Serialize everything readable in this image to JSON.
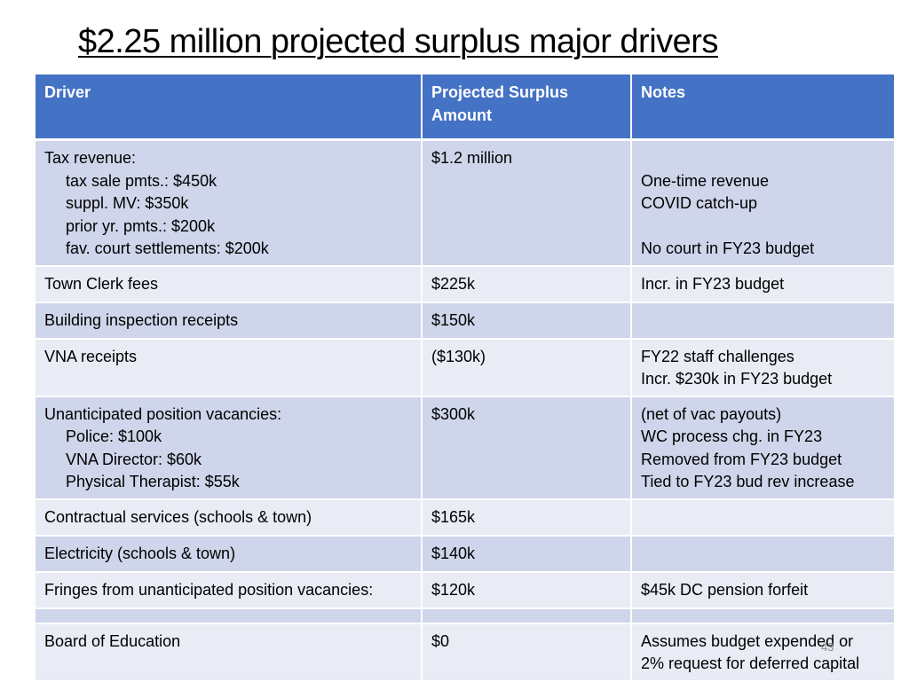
{
  "title": "$2.25 million projected surplus major drivers",
  "table": {
    "headers": [
      "Driver",
      "Projected Surplus Amount",
      "Notes"
    ],
    "header_lines": {
      "amount": [
        "Projected Surplus",
        "Amount"
      ]
    },
    "rows": [
      {
        "driver": "Tax revenue:",
        "driver_subitems": [
          "tax sale pmts.: $450k",
          "suppl. MV: $350k",
          "prior yr. pmts.: $200k",
          "fav. court settlements: $200k"
        ],
        "amount": "$1.2 million",
        "notes": [
          "",
          "One-time revenue",
          "COVID catch-up",
          "",
          "No court in FY23 budget"
        ]
      },
      {
        "driver": "Town Clerk fees",
        "driver_subitems": [],
        "amount": "$225k",
        "notes": [
          "Incr. in FY23 budget"
        ]
      },
      {
        "driver": "Building inspection receipts",
        "driver_subitems": [],
        "amount": "$150k",
        "notes": []
      },
      {
        "driver": "VNA receipts",
        "driver_subitems": [],
        "amount": "($130k)",
        "notes": [
          "FY22 staff challenges",
          "Incr. $230k in FY23 budget"
        ]
      },
      {
        "driver": "Unanticipated position vacancies:",
        "driver_subitems": [
          "Police: $100k",
          "VNA Director: $60k",
          "Physical Therapist: $55k"
        ],
        "amount": "$300k",
        "notes": [
          "(net of vac payouts)",
          "WC process chg. in FY23",
          "Removed from FY23 budget",
          "Tied to FY23 bud rev increase"
        ]
      },
      {
        "driver": "Contractual services (schools & town)",
        "driver_subitems": [],
        "amount": "$165k",
        "notes": []
      },
      {
        "driver": "Electricity (schools & town)",
        "driver_subitems": [],
        "amount": "$140k",
        "notes": []
      },
      {
        "driver": "Fringes from unanticipated position vacancies:",
        "driver_subitems": [],
        "amount": "$120k",
        "notes": [
          "$45k DC pension forfeit"
        ]
      },
      {
        "driver": "",
        "driver_subitems": [],
        "amount": "",
        "notes": []
      },
      {
        "driver": "Board of Education",
        "driver_subitems": [],
        "amount": "$0",
        "notes": [
          "Assumes budget expended or",
          "2% request for deferred capital"
        ]
      }
    ]
  },
  "slide_number": "43",
  "colors": {
    "header_bg": "#4472c4",
    "row_dark": "#cfd5ea",
    "row_light": "#e9ebf5"
  }
}
